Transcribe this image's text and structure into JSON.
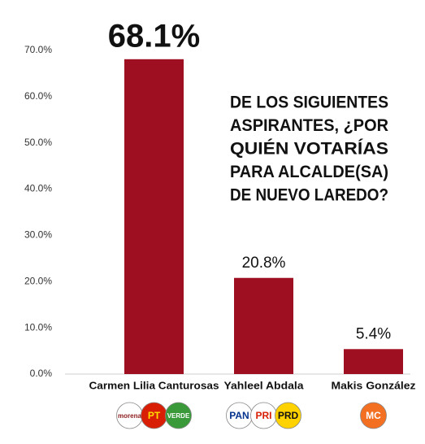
{
  "chart_data": {
    "type": "bar",
    "title": [
      "DE LOS SIGUIENTES",
      "ASPIRANTES, ¿POR",
      "QUIÉN VOTARÍAS",
      "PARA ALCALDE(SA)",
      "DE NUEVO LAREDO?"
    ],
    "categories": [
      "Carmen Lilia Canturosas",
      "Yahleel Abdala",
      "Makis González"
    ],
    "values": [
      68.1,
      20.8,
      5.4
    ],
    "value_labels": [
      "68.1%",
      "20.8%",
      "5.4%"
    ],
    "color": "#9e1021",
    "ylim": [
      0,
      70
    ],
    "yticks": [
      {
        "value": 0,
        "label": "0.0%"
      },
      {
        "value": 10,
        "label": "10.0%"
      },
      {
        "value": 20,
        "label": "20.0%"
      },
      {
        "value": 30,
        "label": "30.0%"
      },
      {
        "value": 40,
        "label": "40.0%"
      },
      {
        "value": 50,
        "label": "50.0%"
      },
      {
        "value": 60,
        "label": "60.0%"
      },
      {
        "value": 70,
        "label": "70.0%"
      }
    ],
    "grid": false,
    "logos": [
      [
        "morena",
        "PT",
        "VERDE"
      ],
      [
        "PAN",
        "PRI",
        "PRD"
      ],
      [
        "MC"
      ]
    ]
  }
}
